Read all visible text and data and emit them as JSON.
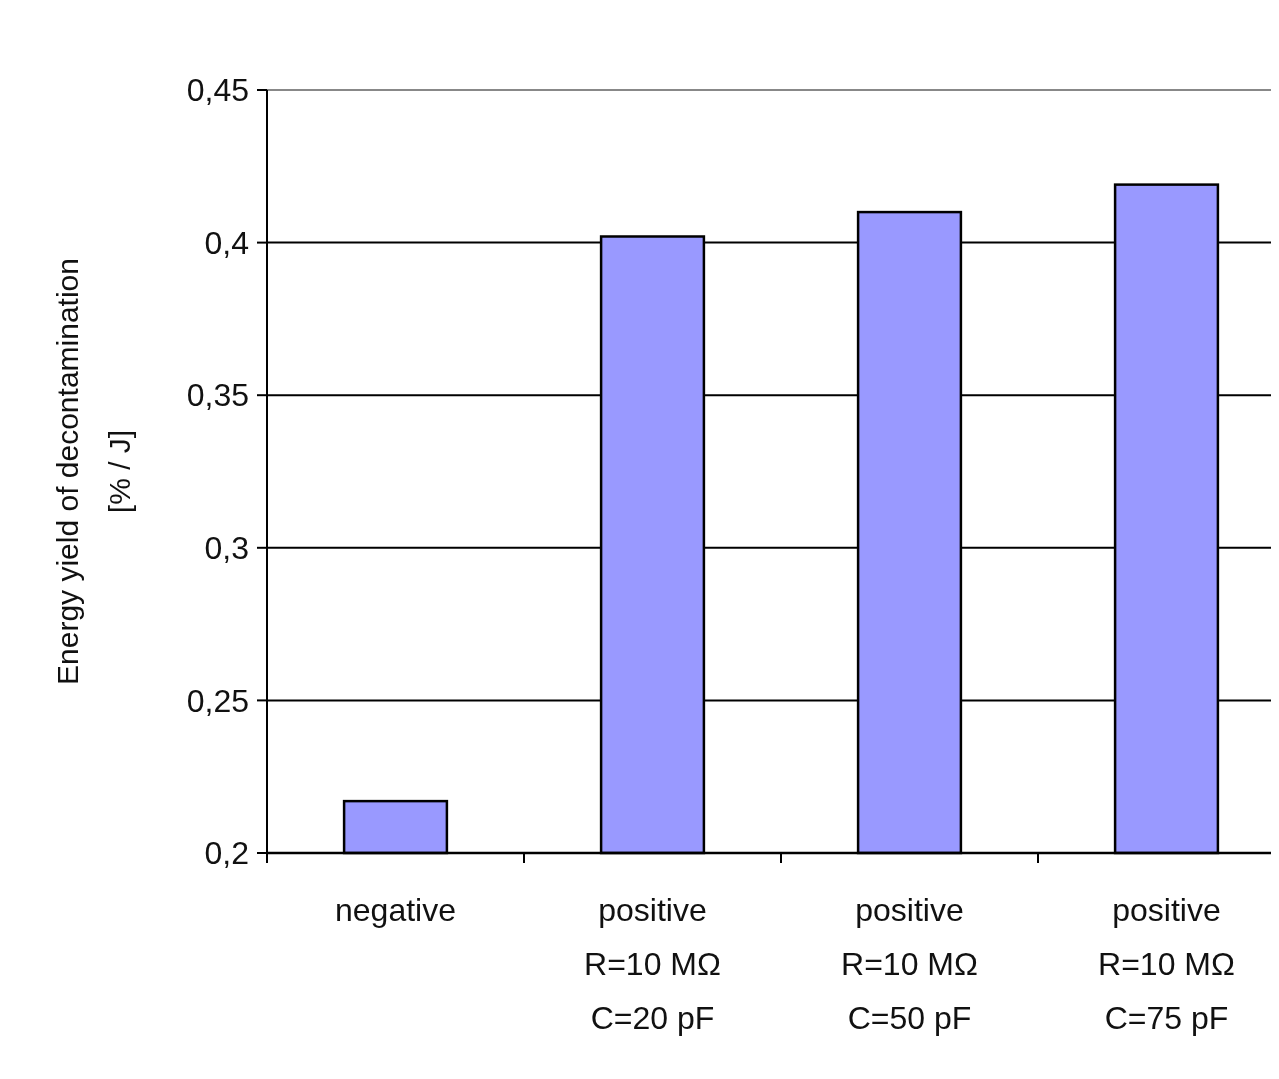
{
  "chart_data": {
    "type": "bar",
    "ylabel": "Energy yield of decontamination\n[% / J]",
    "categories": [
      "negative",
      "positive\nR=10 MΩ\nC=20 pF",
      "positive\nR=10 MΩ\nC=50 pF",
      "positive\nR=10 MΩ\nC=75 pF"
    ],
    "values": [
      0.217,
      0.402,
      0.41,
      0.419
    ],
    "color": "#9999ff",
    "ylim": [
      0.2,
      0.45
    ],
    "yticks": [
      {
        "value": 0.2,
        "label": "0,2"
      },
      {
        "value": 0.25,
        "label": "0,25"
      },
      {
        "value": 0.3,
        "label": "0,3"
      },
      {
        "value": 0.35,
        "label": "0,35"
      },
      {
        "value": 0.4,
        "label": "0,4"
      },
      {
        "value": 0.45,
        "label": "0,45"
      }
    ],
    "grid": "y"
  }
}
